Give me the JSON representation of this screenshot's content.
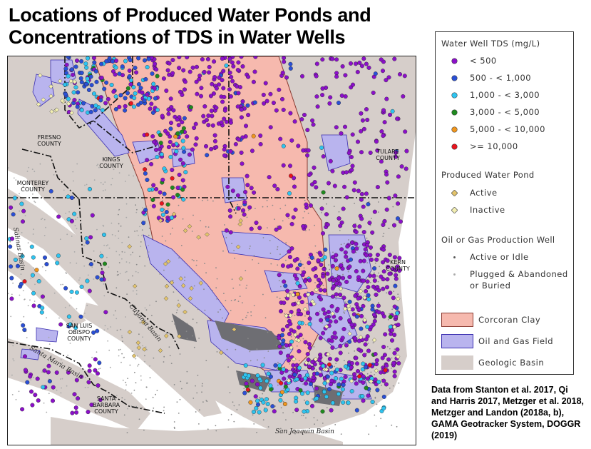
{
  "title": "Locations of Produced Water Ponds and Concentrations of TDS in Water Wells",
  "map": {
    "counties": [
      {
        "key": "fresno",
        "line1": "FRESNO",
        "line2": "COUNTY"
      },
      {
        "key": "kings",
        "line1": "KINGS",
        "line2": "COUNTY"
      },
      {
        "key": "monterey",
        "line1": "MONTEREY",
        "line2": "COUNTY"
      },
      {
        "key": "tulare",
        "line1": "TULARE",
        "line2": "COUNTY"
      },
      {
        "key": "kern",
        "line1": "KERN",
        "line2": "COUNTY"
      },
      {
        "key": "slo",
        "line1": "SAN LUIS",
        "line2": "OBISPO",
        "line3": "COUNTY"
      },
      {
        "key": "sb",
        "line1": "SANTA",
        "line2": "BARBARA",
        "line3": "COUNTY"
      }
    ],
    "basins": {
      "salinas": "Salinas Basin",
      "cuyama": "Cuyama Basin",
      "santa_maria": "Santa Maria Basin",
      "san_joaquin": "San Joaquin Basin"
    }
  },
  "legend": {
    "tds_header": "Water Well TDS (mg/L)",
    "tds_classes": [
      {
        "label": "< 500",
        "color": "#8b10c9"
      },
      {
        "label": "500 - < 1,000",
        "color": "#2a4fd6"
      },
      {
        "label": "1,000 - < 3,000",
        "color": "#2ec4f0"
      },
      {
        "label": "3,000 - < 5,000",
        "color": "#1f8a1f"
      },
      {
        "label": "5,000 - < 10,000",
        "color": "#f0961e"
      },
      {
        "label": ">= 10,000",
        "color": "#e8141e"
      }
    ],
    "pond_header": "Produced Water Pond",
    "pond_classes": [
      {
        "label": "Active",
        "color": "#e3c36a"
      },
      {
        "label": "Inactive",
        "color": "#f3efb2"
      }
    ],
    "prod_header": "Oil or Gas Production Well",
    "prod_classes": [
      {
        "label": "Active or Idle",
        "color": "#555555"
      },
      {
        "label": "Plugged & Abandoned",
        "label2": "or Buried",
        "color": "#aaaaaa"
      }
    ],
    "areas": [
      {
        "label": "Corcoran Clay",
        "fill": "#f6b9ae",
        "stroke": "#8a3b32"
      },
      {
        "label": "Oil and Gas Field",
        "fill": "#b9b4ee",
        "stroke": "#3b2fb0"
      },
      {
        "label": "Geologic Basin",
        "fill": "#d6ceca",
        "stroke": "#d6ceca"
      }
    ]
  },
  "source_note": "Data from Stanton et al. 2017, Qi and Harris 2017, Metzger et al. 2018, Metzger and Landon (2018a, b), GAMA Geotracker System, DOGGR (2019)"
}
